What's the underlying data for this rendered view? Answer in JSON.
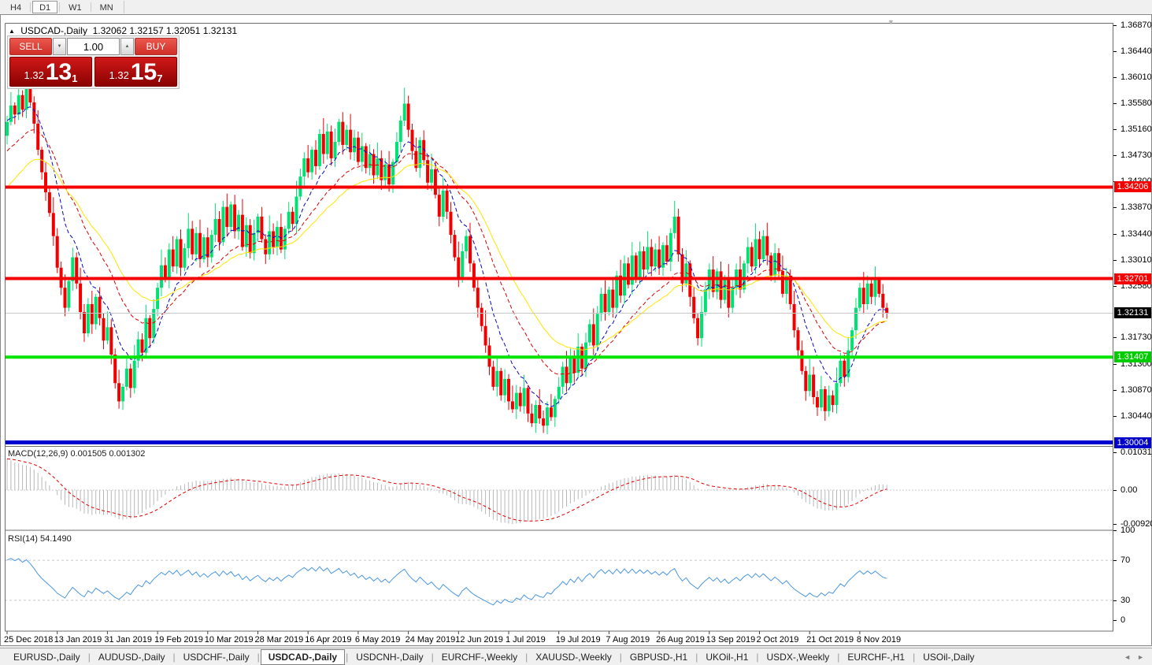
{
  "toolbar": {
    "timeframes": [
      {
        "label": "H4",
        "active": false
      },
      {
        "label": "D1",
        "active": true
      },
      {
        "label": "W1",
        "active": false
      },
      {
        "label": "MN",
        "active": false
      }
    ]
  },
  "window": {
    "symbol_marker": "▲",
    "title": "USDCAD-,Daily",
    "ohlc_values": "1.32062 1.32157 1.32051 1.32131",
    "shift_marker": "▼"
  },
  "trade_panel": {
    "sell_label": "SELL",
    "buy_label": "BUY",
    "volume": "1.00",
    "spinner_down": "▼",
    "spinner_up": "▲",
    "bid_small": "1.32",
    "bid_big": "13",
    "bid_sup": "1",
    "ask_small": "1.32",
    "ask_big": "15",
    "ask_sup": "7"
  },
  "chart_data": {
    "type": "candlestick",
    "symbol": "USDCAD-",
    "timeframe": "Daily",
    "candle_up_color": "#00e173",
    "candle_down_color": "#f20000",
    "x_dates": [
      [
        "25 Dec 2018",
        0
      ],
      [
        "13 Jan 2019",
        13
      ],
      [
        "31 Jan 2019",
        26
      ],
      [
        "19 Feb 2019",
        39
      ],
      [
        "10 Mar 2019",
        52
      ],
      [
        "28 Mar 2019",
        65
      ],
      [
        "16 Apr 2019",
        78
      ],
      [
        "6 May 2019",
        91
      ],
      [
        "24 May 2019",
        104
      ],
      [
        "12 Jun 2019",
        117
      ],
      [
        "1 Jul 2019",
        130
      ],
      [
        "19 Jul 2019",
        143
      ],
      [
        "7 Aug 2019",
        156
      ],
      [
        "26 Aug 2019",
        169
      ],
      [
        "13 Sep 2019",
        182
      ],
      [
        "2 Oct 2019",
        195
      ],
      [
        "21 Oct 2019",
        208
      ],
      [
        "8 Nov 2019",
        221
      ]
    ],
    "first_open": 1.3505,
    "closes": [
      1.3528,
      1.3555,
      1.354,
      1.3572,
      1.3548,
      1.3585,
      1.356,
      1.3525,
      1.3482,
      1.3445,
      1.3412,
      1.3378,
      1.334,
      1.3288,
      1.3255,
      1.3222,
      1.3266,
      1.3305,
      1.3262,
      1.3215,
      1.318,
      1.3228,
      1.3195,
      1.324,
      1.3205,
      1.3168,
      1.319,
      1.3145,
      1.3098,
      1.3068,
      1.3092,
      1.3122,
      1.309,
      1.3135,
      1.317,
      1.3148,
      1.3205,
      1.3172,
      1.322,
      1.3255,
      1.3292,
      1.327,
      1.3318,
      1.329,
      1.3335,
      1.3288,
      1.332,
      1.3352,
      1.331,
      1.3345,
      1.3302,
      1.3338,
      1.3305,
      1.3342,
      1.3368,
      1.333,
      1.3388,
      1.3355,
      1.3392,
      1.3348,
      1.3375,
      1.3322,
      1.3358,
      1.3312,
      1.3345,
      1.3372,
      1.3335,
      1.331,
      1.3348,
      1.3322,
      1.3355,
      1.3318,
      1.3352,
      1.338,
      1.336,
      1.3405,
      1.3438,
      1.3468,
      1.3445,
      1.3482,
      1.3455,
      1.3508,
      1.3475,
      1.3512,
      1.3468,
      1.3495,
      1.3528,
      1.349,
      1.3515,
      1.3478,
      1.3502,
      1.3462,
      1.3488,
      1.3452,
      1.3475,
      1.344,
      1.3468,
      1.3432,
      1.3458,
      1.3425,
      1.3462,
      1.3495,
      1.353,
      1.3558,
      1.3515,
      1.348,
      1.3452,
      1.3498,
      1.3465,
      1.3428,
      1.345,
      1.3408,
      1.3372,
      1.3415,
      1.338,
      1.3342,
      1.3305,
      1.3272,
      1.3315,
      1.334,
      1.3295,
      1.3255,
      1.3222,
      1.3192,
      1.316,
      1.3125,
      1.3092,
      1.3118,
      1.3078,
      1.3105,
      1.3068,
      1.3055,
      1.3082,
      1.306,
      1.309,
      1.3048,
      1.3032,
      1.3062,
      1.304,
      1.3028,
      1.3058,
      1.3042,
      1.3072,
      1.3092,
      1.3125,
      1.3098,
      1.3142,
      1.3115,
      1.3158,
      1.3122,
      1.3165,
      1.3195,
      1.316,
      1.3212,
      1.3245,
      1.3215,
      1.3252,
      1.3222,
      1.3275,
      1.3242,
      1.3295,
      1.326,
      1.3308,
      1.3272,
      1.3315,
      1.3285,
      1.3322,
      1.329,
      1.3318,
      1.3288,
      1.3325,
      1.3298,
      1.3345,
      1.3372,
      1.331,
      1.3262,
      1.3295,
      1.324,
      1.3205,
      1.3172,
      1.3215,
      1.3252,
      1.3285,
      1.3248,
      1.3282,
      1.3235,
      1.3268,
      1.3222,
      1.3255,
      1.3285,
      1.3252,
      1.3295,
      1.3322,
      1.329,
      1.3335,
      1.3302,
      1.334,
      1.3308,
      1.3275,
      1.3312,
      1.3282,
      1.3245,
      1.3275,
      1.3228,
      1.3185,
      1.3152,
      1.3118,
      1.3085,
      1.3112,
      1.3075,
      1.3058,
      1.3088,
      1.3052,
      1.3078,
      1.3062,
      1.3098,
      1.3135,
      1.3108,
      1.3152,
      1.3185,
      1.3222,
      1.3255,
      1.3228,
      1.3262,
      1.324,
      1.3268,
      1.3245,
      1.3222,
      1.3213
    ],
    "wick_up_pattern": [
      0.001,
      0.0022,
      0.0005,
      0.0016,
      0.0008,
      0.0026,
      0.0013
    ],
    "wick_dn_pattern": [
      0.0014,
      0.0006,
      0.0016,
      0.0009,
      0.0012
    ],
    "price_axis_ticks": [
      1.3687,
      1.3644,
      1.3601,
      1.3558,
      1.3516,
      1.3473,
      1.343,
      1.3387,
      1.3344,
      1.3301,
      1.3258,
      1.3173,
      1.313,
      1.3087,
      1.3044
    ],
    "current_price": 1.32131,
    "hlines": [
      {
        "price": 1.34206,
        "color": "#f40000",
        "width": 4,
        "tag": "1.34206",
        "tag_bg": "#f40000"
      },
      {
        "price": 1.32701,
        "color": "#f40000",
        "width": 4,
        "tag": "1.32701",
        "tag_bg": "#f40000"
      },
      {
        "price": 1.32131,
        "color": "#c8c8c8",
        "width": 1,
        "tag": "1.32131",
        "tag_bg": "#000000"
      },
      {
        "price": 1.31407,
        "color": "#00e400",
        "width": 4,
        "tag": "1.31407",
        "tag_bg": "#00cc00"
      },
      {
        "price": 1.30004,
        "color": "#0000d0",
        "width": 5,
        "tag": "1.30004",
        "tag_bg": "#0000c8"
      }
    ],
    "moving_averages": [
      {
        "period": 10,
        "seed": 1.353,
        "color": "#0606c8",
        "dash": "5,3"
      },
      {
        "period": 22,
        "seed": 1.348,
        "color": "#dc0000",
        "dash": "5,3"
      },
      {
        "period": 34,
        "seed": 1.342,
        "color": "#ffe400",
        "dash": ""
      }
    ],
    "macd": {
      "label": "MACD(12,26,9)",
      "value_main": "0.001505",
      "value_signal": "0.001302",
      "fast": 12,
      "slow": 26,
      "signal": 9,
      "slow_seed_offset": 0.0085,
      "hist_color": "#b8b8b8",
      "signal_color": "#e00000",
      "axis_ticks": [
        [
          "0.010311",
          0.010311
        ],
        [
          "0.00",
          0
        ],
        [
          "-0.009203",
          -0.009203
        ]
      ]
    },
    "rsi": {
      "label": "RSI(14)",
      "value": "54.1490",
      "period": 14,
      "seed_gain": 0.0026,
      "seed_loss": 0.0011,
      "color": "#4a96e0",
      "levels": [
        70,
        30
      ],
      "axis_ticks": [
        100,
        70,
        30,
        0
      ]
    }
  },
  "tabs": {
    "items": [
      {
        "label": "EURUSD-,Daily",
        "active": false
      },
      {
        "label": "AUDUSD-,Daily",
        "active": false
      },
      {
        "label": "USDCHF-,Daily",
        "active": false
      },
      {
        "label": "USDCAD-,Daily",
        "active": true
      },
      {
        "label": "USDCNH-,Daily",
        "active": false
      },
      {
        "label": "EURCHF-,Weekly",
        "active": false
      },
      {
        "label": "XAUUSD-,Weekly",
        "active": false
      },
      {
        "label": "GBPUSD-,H1",
        "active": false
      },
      {
        "label": "UKOil-,H1",
        "active": false
      },
      {
        "label": "USDX-,Weekly",
        "active": false
      },
      {
        "label": "EURCHF-,H1",
        "active": false
      },
      {
        "label": "USOil-,Daily",
        "active": false
      }
    ],
    "scroll_left": "◄",
    "scroll_right": "►"
  }
}
